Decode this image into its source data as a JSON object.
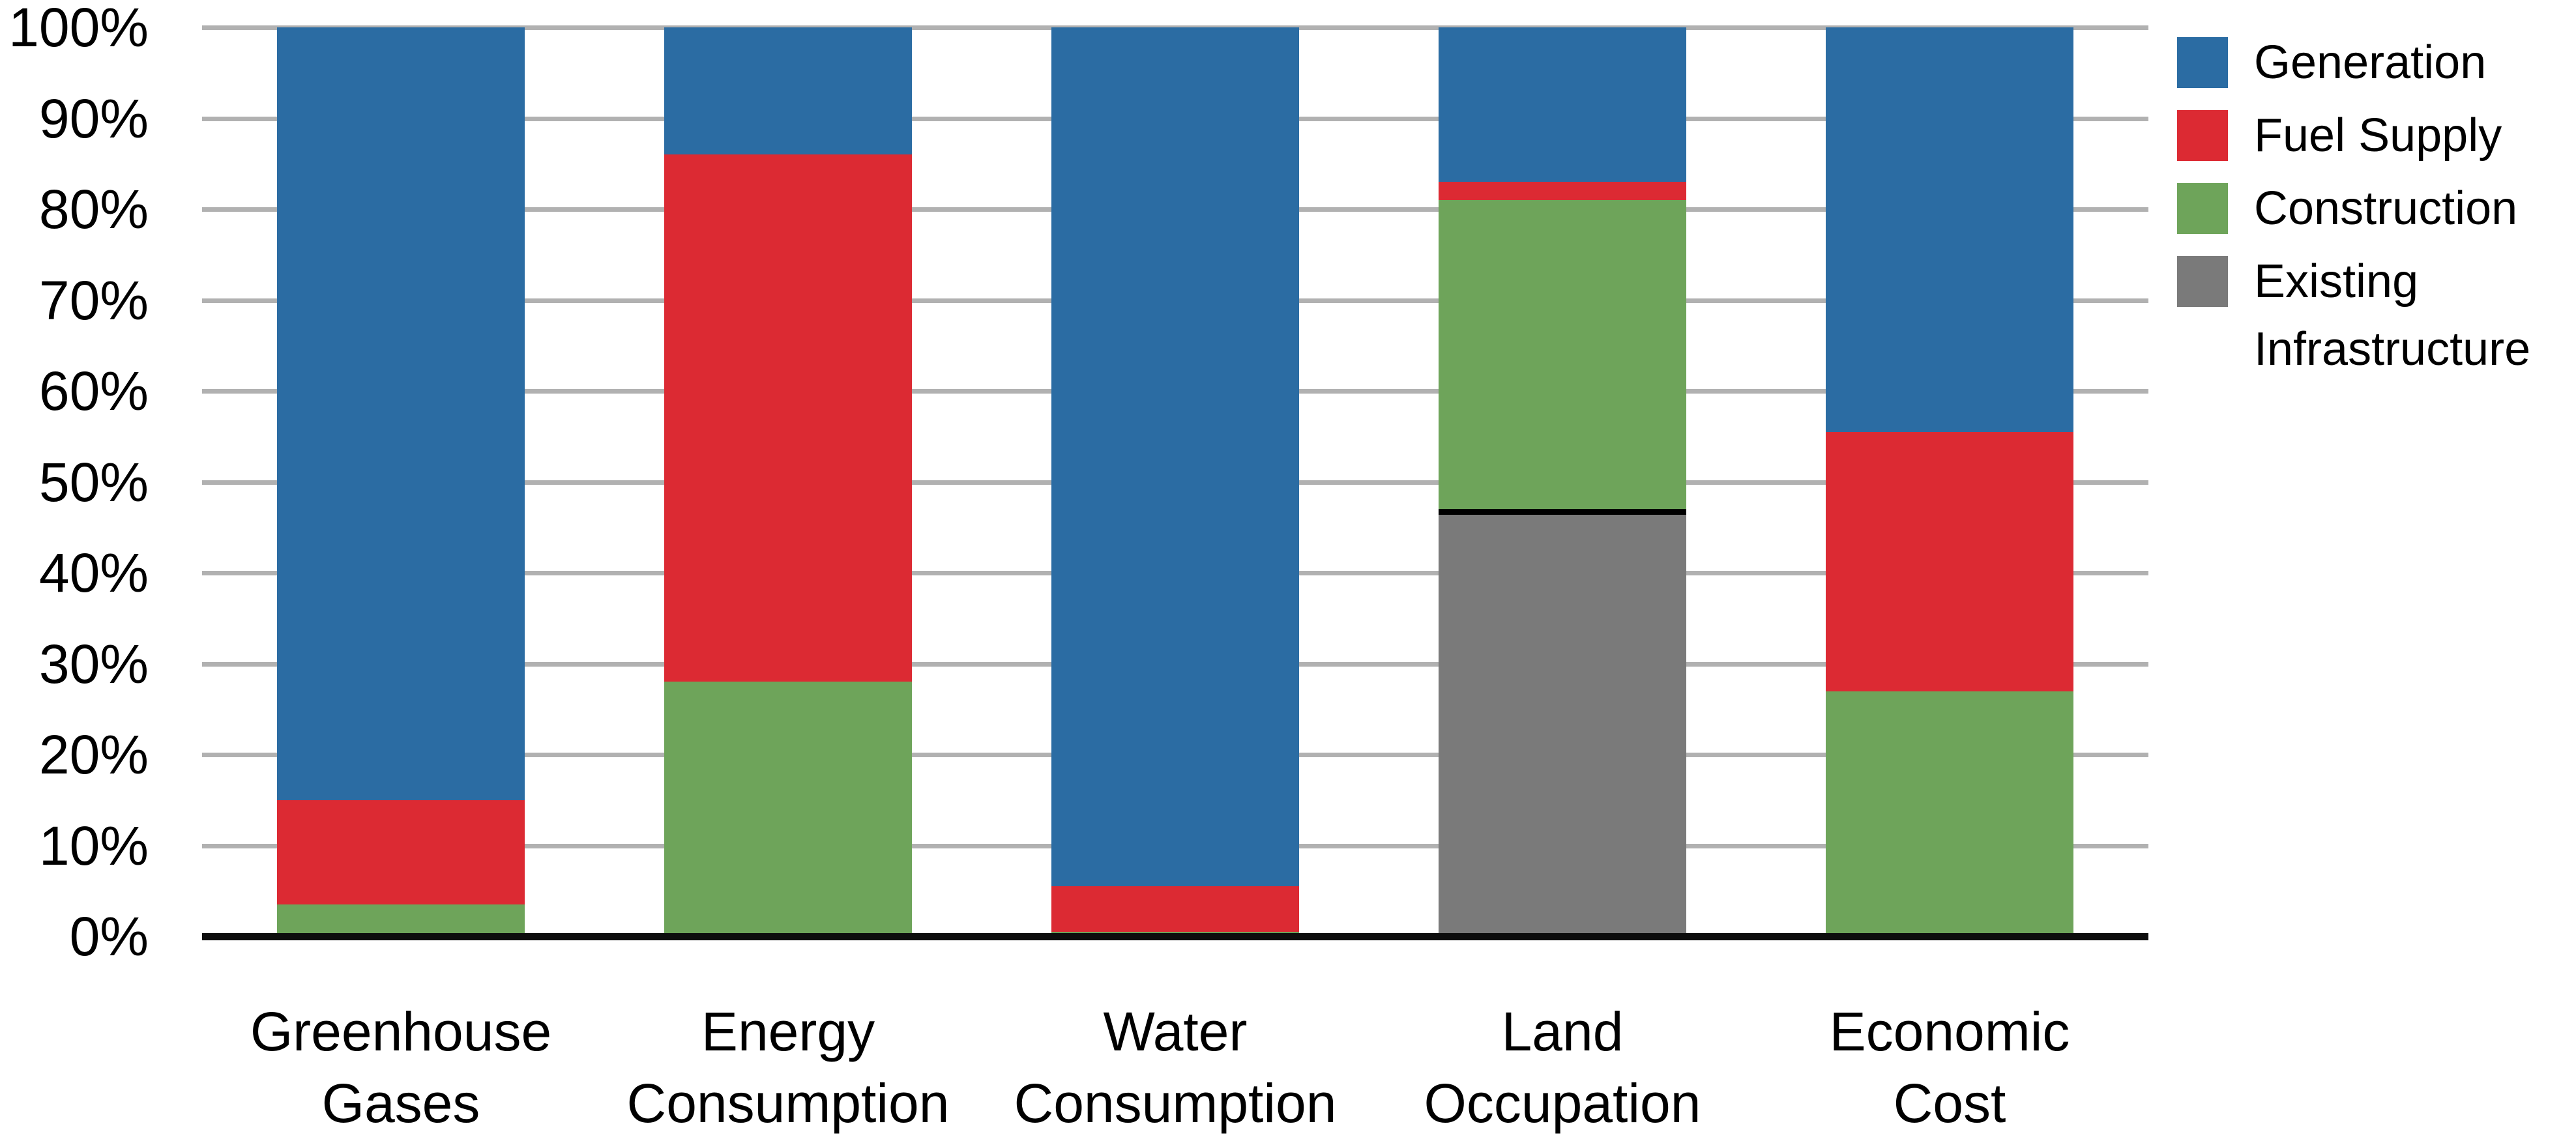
{
  "chart_data": {
    "type": "bar",
    "stacked": true,
    "unit": "percent",
    "title": "",
    "xlabel": "",
    "ylabel": "",
    "ylim": [
      0,
      100
    ],
    "grid": true,
    "legend_position": "top-right",
    "categories": [
      "Greenhouse Gases",
      "Energy Consumption",
      "Water Consumption",
      "Land Occupation",
      "Economic Cost"
    ],
    "category_lines": [
      [
        "Greenhouse",
        "Gases"
      ],
      [
        "Energy",
        "Consumption"
      ],
      [
        "Water",
        "Consumption"
      ],
      [
        "Land",
        "Occupation"
      ],
      [
        "Economic",
        "Cost"
      ]
    ],
    "y_ticks": [
      "0%",
      "10%",
      "20%",
      "30%",
      "40%",
      "50%",
      "60%",
      "70%",
      "80%",
      "90%",
      "100%"
    ],
    "series": [
      {
        "name": "Generation",
        "color": "#2b6ca3",
        "values": [
          85,
          14,
          94.5,
          17,
          44.5
        ]
      },
      {
        "name": "Fuel Supply",
        "color": "#dc2a33",
        "values": [
          11.5,
          58,
          5,
          2,
          28.5
        ]
      },
      {
        "name": "Construction",
        "color": "#6ea45a",
        "values": [
          3.5,
          28,
          0.5,
          34,
          27
        ]
      },
      {
        "name": "Existing Infrastructure",
        "color": "#7a7a7a",
        "values": [
          0,
          0,
          0,
          47,
          0
        ]
      }
    ],
    "stack_order_bottom_to_top": [
      "Existing Infrastructure",
      "Construction",
      "Fuel Supply",
      "Generation"
    ],
    "black_divider_on_existing_infrastructure_top": true,
    "colors": {
      "gridline": "#b1b1b1",
      "axis": "#0d0d0d",
      "text": "#000000",
      "background": "#ffffff"
    }
  }
}
